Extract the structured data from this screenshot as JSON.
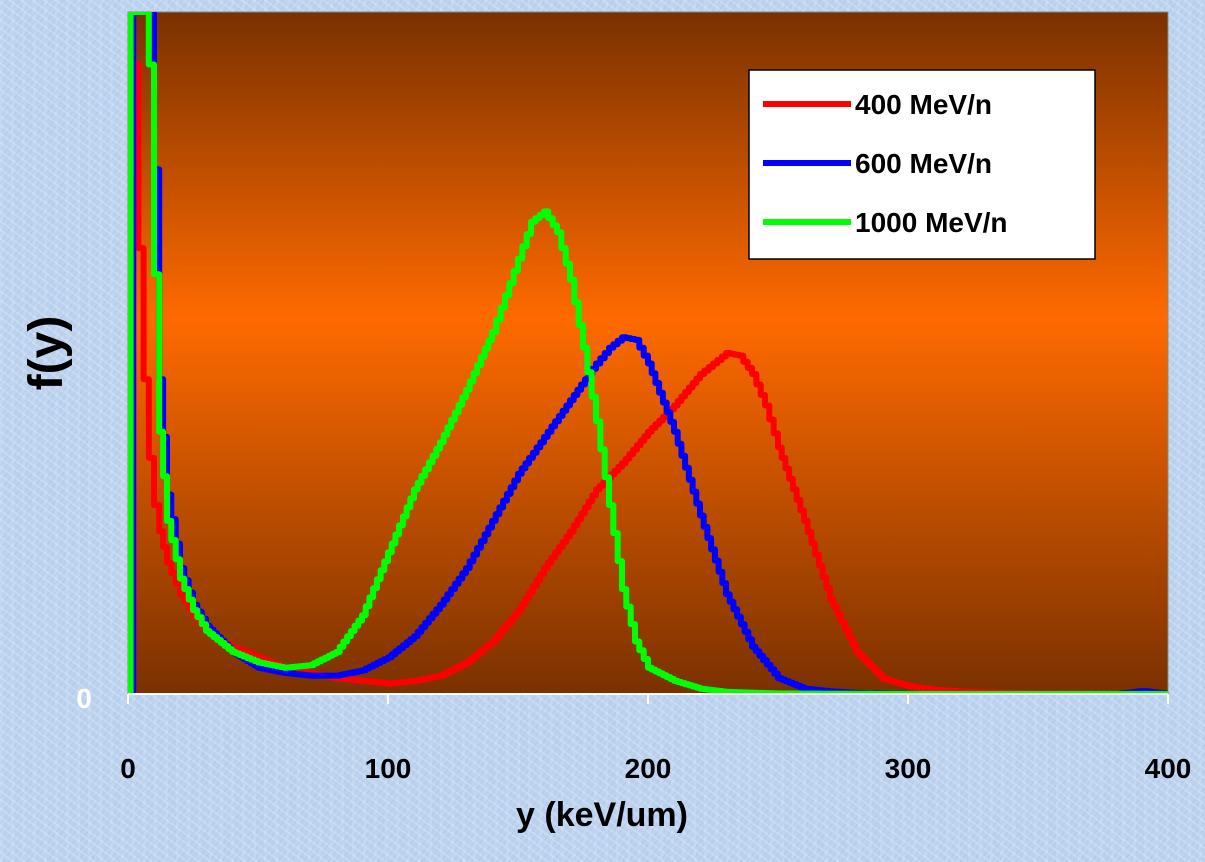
{
  "chart_data": {
    "type": "line",
    "title": "",
    "xlabel": "y (keV/um)",
    "ylabel": "f(y)",
    "xlim": [
      0,
      400
    ],
    "ylim": [
      0,
      1.3
    ],
    "x_ticks": [
      "0",
      "100",
      "200",
      "300",
      "400"
    ],
    "y_ticks": [
      "0"
    ],
    "grid": false,
    "legend": "top-right",
    "colors": {
      "plot_bg_edge": "#7a3100",
      "plot_bg_center": "#ff6a00"
    },
    "series": [
      {
        "name": "400 MeV/n",
        "color": "#ff0000",
        "x": [
          0,
          2,
          4,
          6,
          8,
          10,
          12,
          15,
          20,
          25,
          30,
          40,
          50,
          60,
          70,
          80,
          90,
          100,
          110,
          120,
          130,
          140,
          150,
          160,
          170,
          180,
          190,
          200,
          210,
          220,
          225,
          230,
          235,
          240,
          245,
          250,
          260,
          270,
          280,
          290,
          300,
          310,
          320,
          340,
          360,
          400
        ],
        "y": [
          0,
          1.2,
          0.85,
          0.6,
          0.45,
          0.36,
          0.31,
          0.25,
          0.19,
          0.15,
          0.12,
          0.09,
          0.07,
          0.05,
          0.04,
          0.03,
          0.025,
          0.02,
          0.025,
          0.035,
          0.06,
          0.1,
          0.16,
          0.24,
          0.31,
          0.39,
          0.44,
          0.5,
          0.55,
          0.61,
          0.63,
          0.65,
          0.645,
          0.61,
          0.55,
          0.47,
          0.33,
          0.18,
          0.08,
          0.03,
          0.015,
          0.008,
          0.005,
          0.002,
          0.001,
          0.0
        ]
      },
      {
        "name": "600 MeV/n",
        "color": "#0000ff",
        "x": [
          0,
          2,
          4,
          6,
          8,
          10,
          12,
          15,
          20,
          25,
          30,
          40,
          50,
          60,
          70,
          80,
          90,
          100,
          110,
          120,
          130,
          140,
          150,
          160,
          170,
          180,
          185,
          190,
          195,
          200,
          210,
          220,
          230,
          240,
          250,
          260,
          270,
          280,
          300,
          340,
          380,
          390,
          400
        ],
        "y": [
          0,
          1.3,
          1.3,
          1.3,
          1.3,
          1.0,
          0.6,
          0.38,
          0.24,
          0.17,
          0.13,
          0.08,
          0.05,
          0.04,
          0.035,
          0.035,
          0.045,
          0.07,
          0.11,
          0.17,
          0.24,
          0.33,
          0.42,
          0.49,
          0.56,
          0.63,
          0.66,
          0.68,
          0.675,
          0.63,
          0.5,
          0.34,
          0.19,
          0.09,
          0.03,
          0.01,
          0.005,
          0.002,
          0.0,
          0.0,
          0.0,
          0.006,
          0.0
        ]
      },
      {
        "name": "1000 MeV/n",
        "color": "#00ff00",
        "x": [
          0,
          1,
          2,
          3,
          4,
          5,
          6,
          8,
          10,
          12,
          15,
          20,
          25,
          30,
          40,
          50,
          60,
          70,
          80,
          90,
          100,
          110,
          120,
          130,
          140,
          145,
          150,
          155,
          160,
          165,
          170,
          175,
          180,
          185,
          190,
          195,
          200,
          210,
          220,
          230,
          250,
          300,
          400
        ],
        "y": [
          0,
          1.3,
          1.3,
          1.3,
          1.3,
          1.3,
          1.3,
          1.2,
          0.8,
          0.5,
          0.33,
          0.22,
          0.16,
          0.12,
          0.08,
          0.06,
          0.05,
          0.055,
          0.08,
          0.15,
          0.27,
          0.39,
          0.48,
          0.58,
          0.69,
          0.76,
          0.83,
          0.9,
          0.92,
          0.88,
          0.79,
          0.66,
          0.52,
          0.36,
          0.2,
          0.1,
          0.05,
          0.025,
          0.01,
          0.004,
          0.001,
          0.0,
          0.0
        ]
      }
    ]
  }
}
